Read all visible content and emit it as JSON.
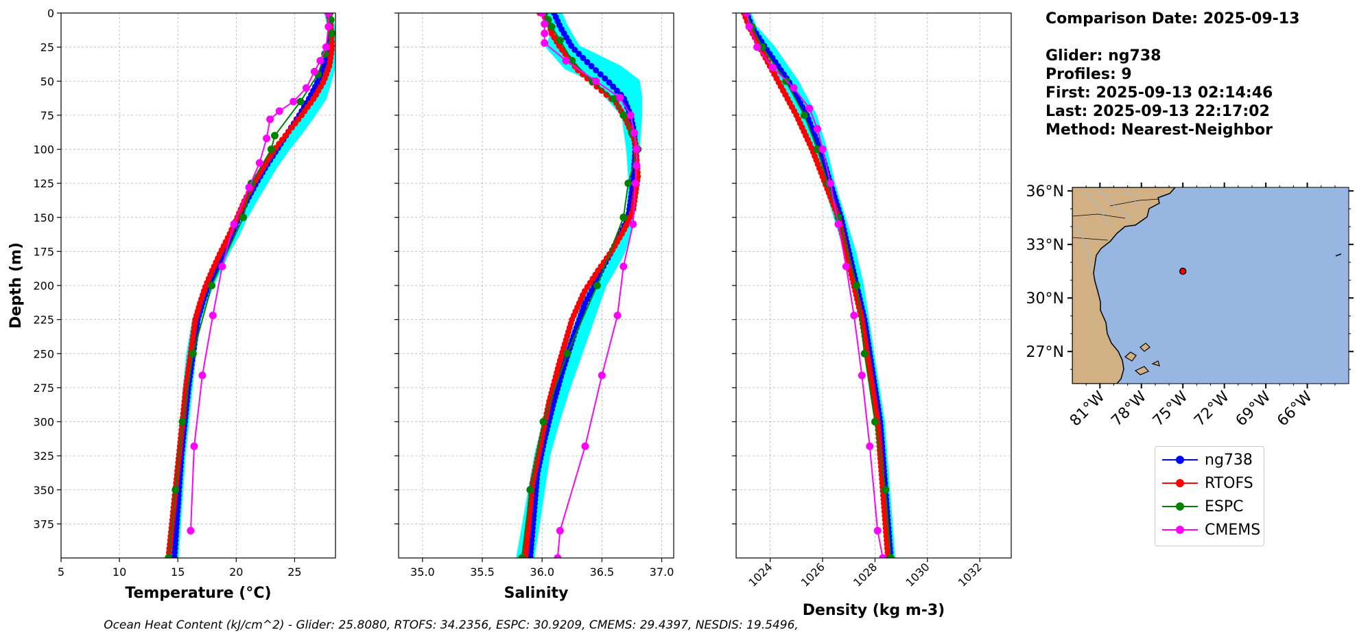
{
  "chart_data": [
    {
      "type": "line",
      "panel": "temperature",
      "xlabel": "Temperature (°C)",
      "ylabel": "Depth (m)",
      "xlim": [
        5,
        28.5
      ],
      "ylim": [
        400,
        0
      ],
      "xticks": [
        5,
        10,
        15,
        20,
        25
      ],
      "xtick_labels": [
        "5",
        "10",
        "15",
        "20",
        "25"
      ],
      "yticks": [
        0,
        25,
        50,
        75,
        100,
        125,
        150,
        175,
        200,
        225,
        250,
        275,
        300,
        325,
        350,
        375
      ],
      "ytick_labels": [
        "0",
        "25",
        "50",
        "75",
        "100",
        "125",
        "150",
        "175",
        "200",
        "225",
        "250",
        "275",
        "300",
        "325",
        "350",
        "375"
      ],
      "grid": true,
      "series": [
        {
          "name": "ng738 profiles",
          "color": "#00ffff",
          "style": "band",
          "x": [
            27.7,
            28.0,
            28.3,
            27.6,
            27.0,
            26.3,
            25.6,
            24.8,
            23.8,
            22.8,
            21.9,
            21.1,
            20.4,
            19.8,
            19.2,
            18.4,
            17.6,
            16.9,
            16.4,
            15.9,
            15.6,
            15.4,
            15.2,
            14.9,
            14.6,
            14.4
          ],
          "x2": [
            28.0,
            28.3,
            28.5,
            28.4,
            28.0,
            27.6,
            26.6,
            25.5,
            24.4,
            23.4,
            22.5,
            21.6,
            20.8,
            20.1,
            19.3,
            18.6,
            17.9,
            17.3,
            16.8,
            16.4,
            16.1,
            15.8,
            15.5,
            15.3,
            15.1,
            14.9
          ],
          "y": [
            0,
            10,
            25,
            38,
            50,
            62,
            75,
            88,
            100,
            112,
            125,
            138,
            150,
            163,
            175,
            188,
            200,
            213,
            225,
            250,
            275,
            300,
            325,
            350,
            375,
            400
          ]
        },
        {
          "name": "ng738",
          "color": "#0000ff",
          "marker": "dense",
          "x": [
            27.9,
            28.1,
            28.0,
            27.5,
            27.0,
            26.3,
            25.4,
            24.4,
            23.5,
            22.6,
            21.7,
            20.9,
            20.2,
            19.6,
            19.0,
            18.3,
            17.6,
            17.1,
            16.7,
            16.3,
            15.9,
            15.6,
            15.3,
            15.1,
            14.9,
            14.7
          ],
          "y": [
            0,
            10,
            25,
            38,
            50,
            62,
            75,
            88,
            100,
            112,
            125,
            138,
            150,
            163,
            175,
            188,
            200,
            213,
            225,
            250,
            275,
            300,
            325,
            350,
            375,
            400
          ]
        },
        {
          "name": "RTOFS",
          "color": "#ff0000",
          "marker": "dense",
          "x": [
            27.9,
            28.1,
            28.2,
            28.0,
            27.5,
            26.7,
            25.6,
            24.4,
            23.3,
            22.4,
            21.5,
            20.7,
            20.1,
            19.4,
            18.7,
            18.0,
            17.4,
            16.9,
            16.5,
            16.1,
            15.7,
            15.4,
            15.1,
            14.8,
            14.5,
            14.2
          ],
          "y": [
            0,
            10,
            25,
            38,
            50,
            62,
            75,
            88,
            100,
            112,
            125,
            138,
            150,
            163,
            175,
            188,
            200,
            213,
            225,
            250,
            275,
            300,
            325,
            350,
            375,
            400
          ]
        },
        {
          "name": "ESPC",
          "color": "#008000",
          "marker": "sparse",
          "x": [
            28.0,
            28.1,
            28.2,
            27.6,
            27.0,
            25.5,
            23.3,
            23.0,
            21.3,
            20.6,
            17.9,
            16.3,
            15.4,
            14.8,
            14.2
          ],
          "y": [
            0,
            5,
            15,
            30,
            45,
            65,
            90,
            100,
            125,
            150,
            200,
            250,
            300,
            350,
            400
          ]
        },
        {
          "name": "CMEMS",
          "color": "#ff00ff",
          "marker": "sparse",
          "x": [
            27.9,
            27.9,
            27.7,
            27.2,
            26.7,
            26.0,
            24.9,
            23.7,
            22.9,
            22.6,
            22.0,
            21.1,
            19.8,
            18.8,
            18.0,
            17.1,
            16.4,
            16.1
          ],
          "y": [
            0,
            10,
            25,
            35,
            43,
            55,
            65,
            72,
            78,
            92,
            110,
            128,
            155,
            186,
            222,
            266,
            318,
            380
          ]
        }
      ]
    },
    {
      "type": "line",
      "panel": "salinity",
      "xlabel": "Salinity",
      "xlim": [
        34.8,
        37.1
      ],
      "ylim": [
        400,
        0
      ],
      "xticks": [
        35.0,
        35.5,
        36.0,
        36.5,
        37.0
      ],
      "xtick_labels": [
        "35.0",
        "35.5",
        "36.0",
        "36.5",
        "37.0"
      ],
      "grid": true,
      "series": [
        {
          "name": "ng738 profiles",
          "color": "#00ffff",
          "style": "band",
          "x": [
            36.05,
            36.1,
            36.05,
            36.2,
            36.45,
            36.55,
            36.68,
            36.72,
            36.74,
            36.72,
            36.68,
            36.62,
            36.55,
            36.4,
            36.3,
            36.2,
            36.1,
            36.02,
            35.95,
            35.8
          ],
          "x2": [
            36.15,
            36.2,
            36.3,
            36.65,
            36.8,
            36.82,
            36.82,
            36.8,
            36.78,
            36.75,
            36.72,
            36.68,
            36.6,
            36.52,
            36.42,
            36.32,
            36.22,
            36.13,
            36.05,
            35.92
          ],
          "y": [
            0,
            10,
            25,
            40,
            50,
            62,
            75,
            100,
            125,
            150,
            163,
            175,
            188,
            200,
            225,
            250,
            275,
            300,
            325,
            400
          ]
        },
        {
          "name": "ng738",
          "color": "#0000ff",
          "marker": "dense",
          "x": [
            36.1,
            36.15,
            36.25,
            36.4,
            36.55,
            36.68,
            36.74,
            36.77,
            36.78,
            36.76,
            36.72,
            36.65,
            36.58,
            36.5,
            36.44,
            36.36,
            36.26,
            36.17,
            36.09,
            36.02,
            35.96,
            35.9
          ],
          "y": [
            0,
            10,
            25,
            38,
            50,
            62,
            75,
            88,
            100,
            125,
            150,
            163,
            175,
            188,
            200,
            213,
            238,
            263,
            288,
            313,
            338,
            400
          ]
        },
        {
          "name": "RTOFS",
          "color": "#ff0000",
          "marker": "dense",
          "x": [
            35.98,
            36.05,
            36.08,
            36.15,
            36.3,
            36.47,
            36.62,
            36.7,
            36.78,
            36.8,
            36.76,
            36.68,
            36.58,
            36.46,
            36.35,
            36.25,
            36.15,
            36.06,
            35.99,
            35.92,
            35.86
          ],
          "y": [
            0,
            5,
            15,
            25,
            42,
            55,
            66,
            78,
            95,
            120,
            145,
            160,
            175,
            190,
            205,
            225,
            255,
            285,
            315,
            345,
            400
          ]
        },
        {
          "name": "ESPC",
          "color": "#008000",
          "marker": "sparse",
          "x": [
            36.02,
            36.05,
            36.08,
            36.15,
            36.25,
            36.42,
            36.6,
            36.68,
            36.75,
            36.8,
            36.72,
            36.68,
            36.46,
            36.21,
            36.01,
            35.9,
            35.83
          ],
          "y": [
            0,
            5,
            10,
            20,
            35,
            50,
            63,
            75,
            88,
            100,
            125,
            150,
            200,
            250,
            300,
            350,
            400
          ]
        },
        {
          "name": "CMEMS",
          "color": "#ff00ff",
          "marker": "sparse",
          "x": [
            36.0,
            36.02,
            36.02,
            36.02,
            36.2,
            36.45,
            36.65,
            36.74,
            36.77,
            36.79,
            36.79,
            36.78,
            36.76,
            36.68,
            36.63,
            36.5,
            36.36,
            36.15,
            36.13
          ],
          "y": [
            0,
            8,
            15,
            22,
            35,
            50,
            62,
            75,
            88,
            100,
            112,
            125,
            155,
            186,
            222,
            266,
            318,
            380,
            400
          ]
        }
      ]
    },
    {
      "type": "line",
      "panel": "density",
      "xlabel": "Density (kg m-3)",
      "xlim": [
        1022.7,
        1033.2
      ],
      "ylim": [
        400,
        0
      ],
      "xticks": [
        1024,
        1026,
        1028,
        1030,
        1032
      ],
      "xtick_labels": [
        "1024",
        "1026",
        "1028",
        "1030",
        "1032"
      ],
      "grid": true,
      "series": [
        {
          "name": "ng738 profiles",
          "color": "#00ffff",
          "style": "band",
          "x": [
            1023.0,
            1023.2,
            1023.6,
            1024.4,
            1025.2,
            1025.7,
            1026.1,
            1026.5,
            1026.9,
            1027.2,
            1027.5,
            1027.7,
            1027.9,
            1028.1,
            1028.3,
            1028.5
          ],
          "x2": [
            1023.2,
            1023.4,
            1024.1,
            1025.0,
            1025.7,
            1026.1,
            1026.4,
            1026.8,
            1027.2,
            1027.5,
            1027.7,
            1027.9,
            1028.1,
            1028.3,
            1028.5,
            1028.7
          ],
          "y": [
            0,
            10,
            25,
            50,
            75,
            100,
            125,
            150,
            175,
            200,
            225,
            250,
            275,
            300,
            350,
            400
          ]
        },
        {
          "name": "ng738",
          "color": "#0000ff",
          "marker": "dense",
          "x": [
            1023.1,
            1023.3,
            1023.8,
            1024.7,
            1025.4,
            1025.9,
            1026.3,
            1026.7,
            1027.0,
            1027.3,
            1027.6,
            1027.8,
            1028.0,
            1028.2,
            1028.4,
            1028.6
          ],
          "y": [
            0,
            10,
            25,
            50,
            75,
            100,
            125,
            150,
            175,
            200,
            225,
            250,
            275,
            300,
            350,
            400
          ]
        },
        {
          "name": "RTOFS",
          "color": "#ff0000",
          "marker": "dense",
          "x": [
            1023.0,
            1023.2,
            1023.6,
            1024.3,
            1025.0,
            1025.6,
            1026.1,
            1026.6,
            1026.9,
            1027.2,
            1027.5,
            1027.7,
            1027.9,
            1028.1,
            1028.3,
            1028.5
          ],
          "y": [
            0,
            10,
            25,
            50,
            75,
            100,
            125,
            150,
            175,
            200,
            225,
            250,
            275,
            300,
            350,
            400
          ]
        },
        {
          "name": "ESPC",
          "color": "#008000",
          "marker": "sparse",
          "x": [
            1023.1,
            1023.3,
            1023.7,
            1024.6,
            1025.3,
            1025.8,
            1026.2,
            1026.6,
            1027.3,
            1027.6,
            1028.0,
            1028.4,
            1028.6
          ],
          "y": [
            0,
            10,
            25,
            50,
            75,
            100,
            125,
            150,
            200,
            250,
            300,
            350,
            400
          ]
        },
        {
          "name": "CMEMS",
          "color": "#ff00ff",
          "marker": "sparse",
          "x": [
            1023.1,
            1023.2,
            1023.5,
            1024.1,
            1024.9,
            1025.5,
            1025.8,
            1026.0,
            1026.3,
            1026.6,
            1026.9,
            1027.2,
            1027.5,
            1027.8,
            1028.1,
            1028.3
          ],
          "y": [
            0,
            10,
            25,
            40,
            55,
            70,
            85,
            100,
            125,
            155,
            186,
            222,
            266,
            318,
            380,
            400
          ]
        }
      ]
    },
    {
      "type": "map",
      "xlim": [
        -83,
        -63
      ],
      "ylim": [
        25.2,
        36.2
      ],
      "xticks": [
        -81,
        -78,
        -75,
        -72,
        -69,
        -66
      ],
      "xtick_labels": [
        "81°W",
        "78°W",
        "75°W",
        "72°W",
        "69°W",
        "66°W"
      ],
      "yticks": [
        36,
        33,
        30,
        27
      ],
      "ytick_labels": [
        "36°N",
        "33°N",
        "30°N",
        "27°N"
      ],
      "ocean_color": "#97b6e1",
      "land_color": "#d1b183",
      "glider_position": {
        "lon": -75.0,
        "lat": 31.5
      }
    }
  ],
  "info": {
    "comparison_date": "Comparison Date: 2025-09-13",
    "glider": "Glider: ng738",
    "profiles": "Profiles: 9",
    "first": "First: 2025-09-13 02:14:46",
    "last": "Last: 2025-09-13 22:17:02",
    "method": "Method: Nearest-Neighbor"
  },
  "legend": {
    "items": [
      {
        "label": "ng738",
        "color": "#0000ff"
      },
      {
        "label": "RTOFS",
        "color": "#ff0000"
      },
      {
        "label": "ESPC",
        "color": "#008000"
      },
      {
        "label": "CMEMS",
        "color": "#ff00ff"
      }
    ]
  },
  "footer": "Ocean Heat Content (kJ/cm^2) - Glider: 25.8080,  RTOFS: 34.2356,  ESPC: 30.9209,  CMEMS: 29.4397,  NESDIS: 19.5496,"
}
